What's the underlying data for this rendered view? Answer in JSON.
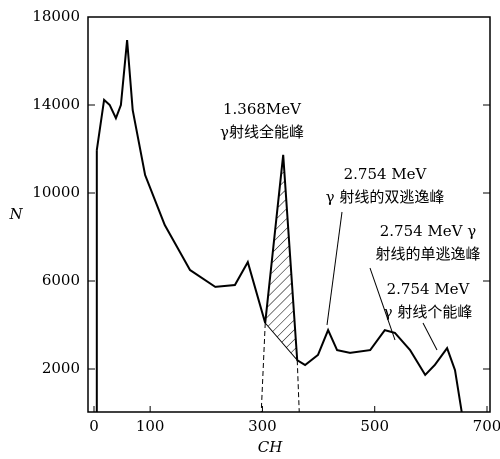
{
  "chart_data": {
    "type": "line",
    "x_label": "CH",
    "y_label": "N",
    "xlim": [
      0,
      700
    ],
    "ylim": [
      0,
      18000
    ],
    "xticks": [
      0,
      100,
      300,
      500,
      700
    ],
    "yticks": [
      2000,
      6000,
      10000,
      14000,
      18000
    ],
    "color": "#000000",
    "x": [
      5,
      18,
      28,
      39,
      48,
      59,
      69,
      91,
      126,
      171,
      216,
      251,
      274,
      305,
      337,
      362,
      376,
      399,
      417,
      433,
      456,
      492,
      518,
      536,
      563,
      590,
      607,
      629,
      643,
      655
    ],
    "values": [
      11950,
      14230,
      14000,
      13400,
      14000,
      16950,
      13770,
      10820,
      8550,
      6500,
      5730,
      5820,
      6860,
      4090,
      11730,
      2400,
      2180,
      2640,
      3770,
      2860,
      2730,
      2860,
      3770,
      3640,
      2860,
      1730,
      2180,
      2950,
      1950,
      50
    ],
    "annotations": [
      "1.368MeV",
      "γ射线全能峰",
      "2.754 MeV",
      "γ 射线的双逃逸峰",
      "2.754 MeV γ",
      "射线的单逃逸峰",
      "2.754 MeV",
      "γ 射线个能峰"
    ]
  }
}
